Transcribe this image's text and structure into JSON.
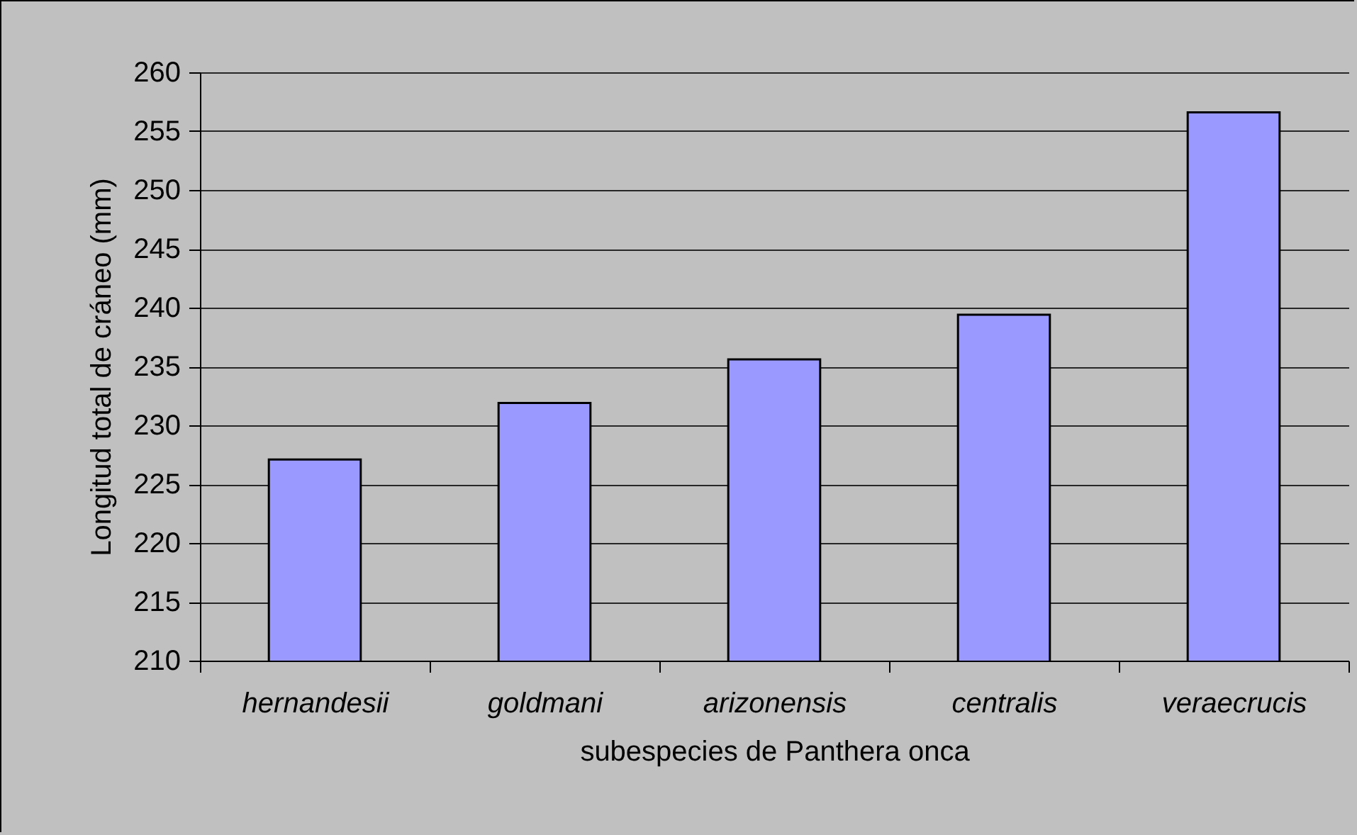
{
  "chart_data": {
    "type": "bar",
    "xlabel": "subespecies de Panthera onca",
    "ylabel": "Longitud total de cráneo (mm)",
    "categories": [
      "hernandesii",
      "goldmani",
      "arizonensis",
      "centralis",
      "veraecrucis"
    ],
    "values": [
      227.1,
      231.9,
      235.6,
      239.4,
      256.6
    ],
    "color": "#9999ff",
    "ylim": [
      210,
      260
    ],
    "yticks": [
      210,
      215,
      220,
      225,
      230,
      235,
      240,
      245,
      250,
      255,
      260
    ],
    "grid": "y"
  }
}
